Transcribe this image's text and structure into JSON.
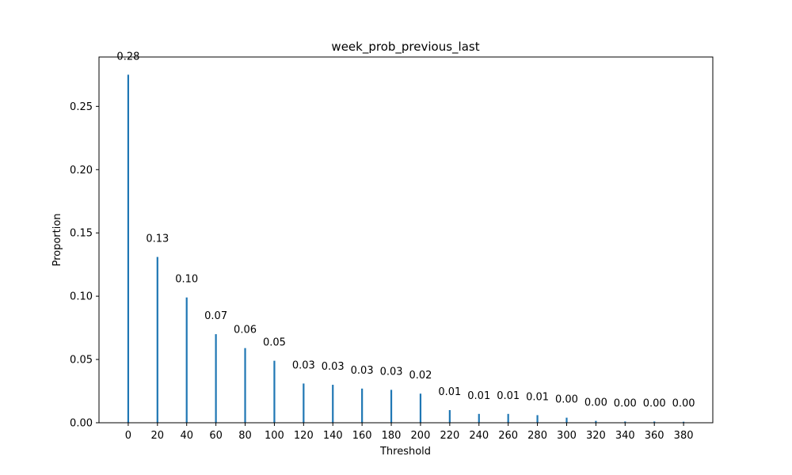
{
  "chart_data": {
    "type": "bar",
    "title": "week_prob_previous_last",
    "xlabel": "Threshold",
    "ylabel": "Proportion",
    "x": [
      0,
      20,
      40,
      60,
      80,
      100,
      120,
      140,
      160,
      180,
      200,
      220,
      240,
      260,
      280,
      300,
      320,
      340,
      360,
      380
    ],
    "values": [
      0.275,
      0.131,
      0.099,
      0.07,
      0.059,
      0.049,
      0.031,
      0.03,
      0.027,
      0.026,
      0.023,
      0.01,
      0.007,
      0.007,
      0.006,
      0.004,
      0.0015,
      0.001,
      0.001,
      0.0008
    ],
    "value_labels": [
      "0.28",
      "0.13",
      "0.10",
      "0.07",
      "0.06",
      "0.05",
      "0.03",
      "0.03",
      "0.03",
      "0.03",
      "0.02",
      "0.01",
      "0.01",
      "0.01",
      "0.01",
      "0.00",
      "0.00",
      "0.00",
      "0.00",
      "0.00"
    ],
    "x_ticks": [
      "0",
      "20",
      "40",
      "60",
      "80",
      "100",
      "120",
      "140",
      "160",
      "180",
      "200",
      "220",
      "240",
      "260",
      "280",
      "300",
      "320",
      "340",
      "360",
      "380"
    ],
    "y_ticks": [
      "0.00",
      "0.05",
      "0.10",
      "0.15",
      "0.20",
      "0.25"
    ],
    "y_tick_values": [
      0,
      0.05,
      0.1,
      0.15,
      0.2,
      0.25
    ],
    "xlim": [
      -20,
      400
    ],
    "ylim": [
      0,
      0.289
    ],
    "grid": false,
    "bar_color": "#1f77b4"
  }
}
